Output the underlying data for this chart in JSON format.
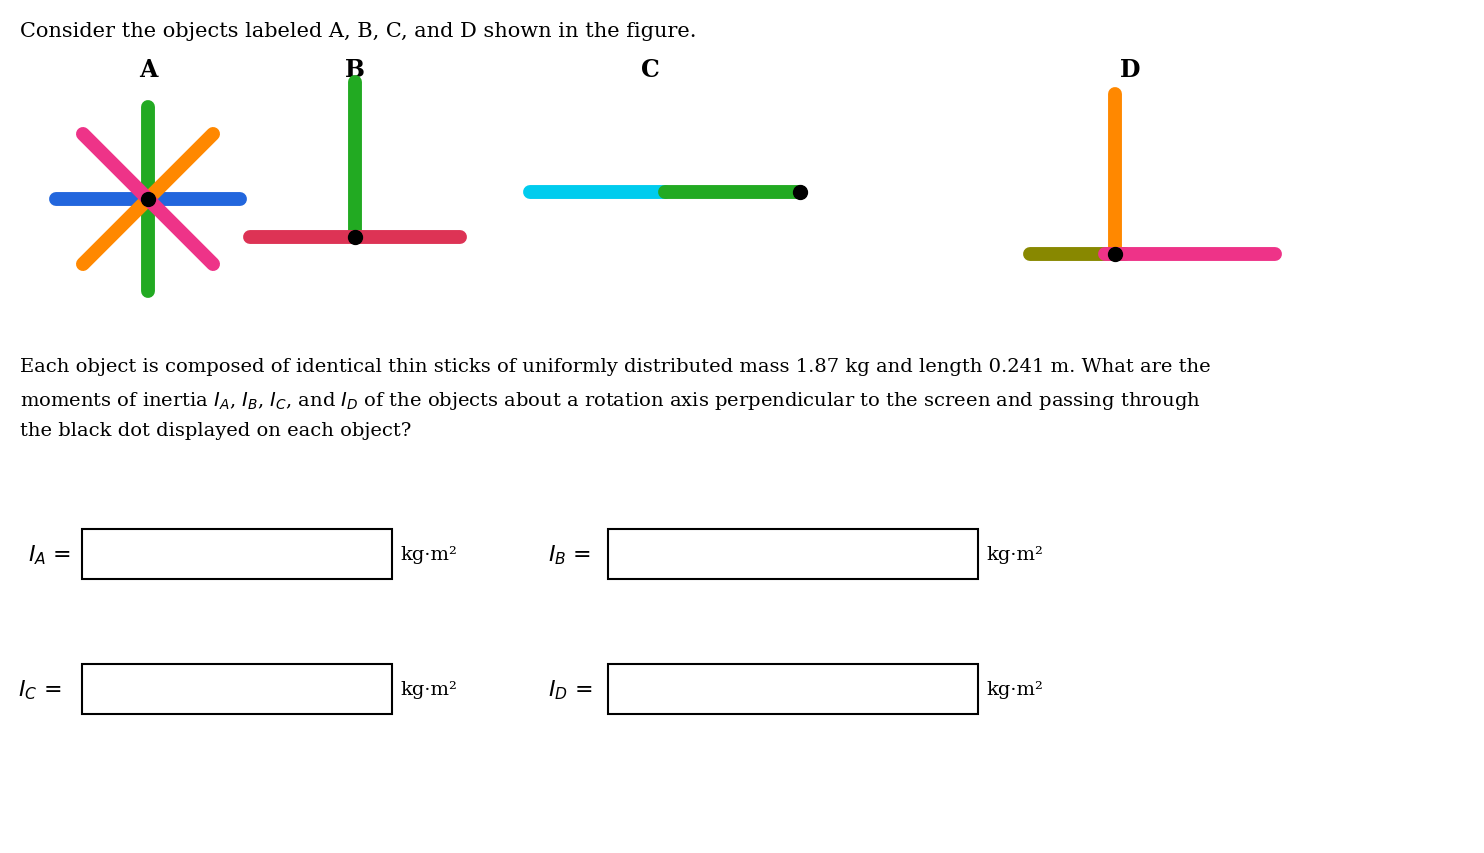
{
  "title": "Consider the objects labeled A, B, C, and D shown in the figure.",
  "bg_color": "#ffffff",
  "label_A": "A",
  "label_B": "B",
  "label_C": "C",
  "label_D": "D",
  "stick_linewidth": 10,
  "colors": {
    "green": "#22aa22",
    "blue": "#2266dd",
    "orange": "#ff8800",
    "pink": "#ee3388",
    "cyan": "#00ccee",
    "olive": "#888800",
    "red_pink": "#dd3355"
  }
}
